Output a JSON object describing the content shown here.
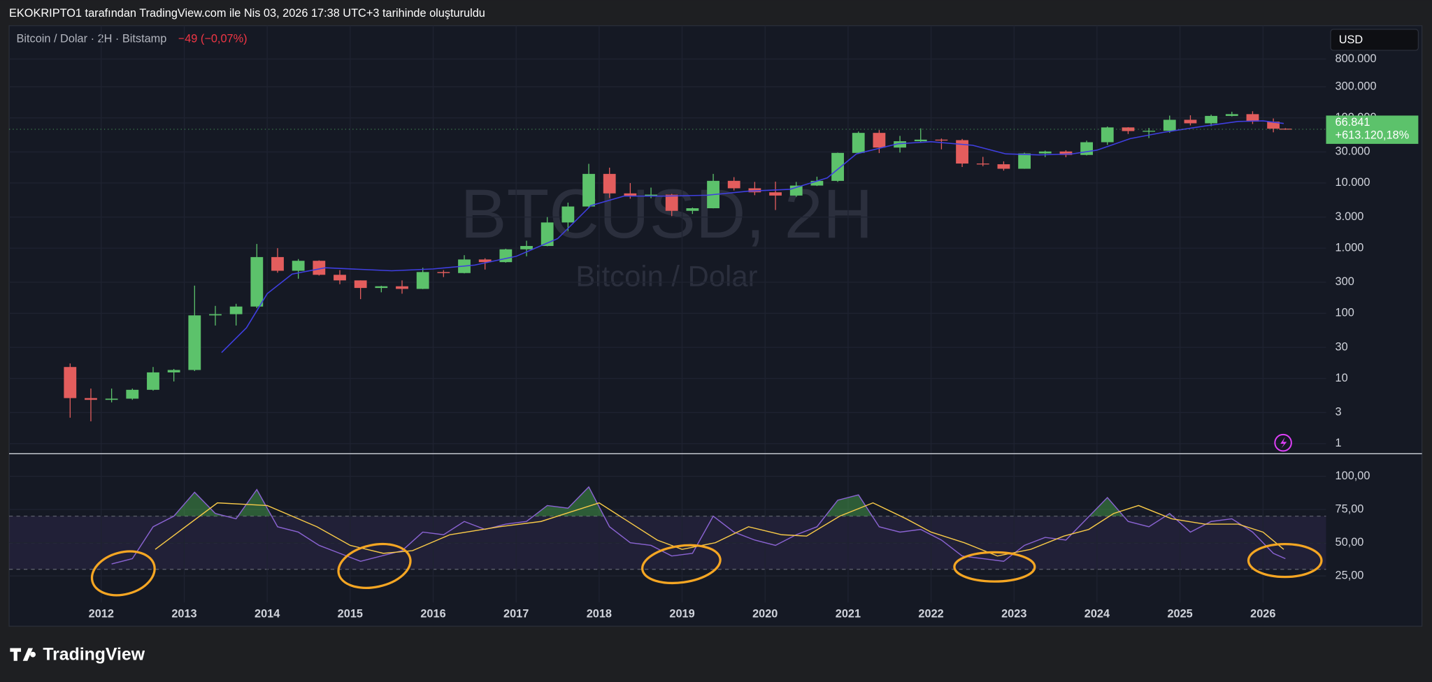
{
  "page": {
    "header": "EKOKRIPTO1 tarafından TradingView.com ile Nis 03, 2026 17:38 UTC+3 tarihinde oluşturuldu",
    "symbol": "Bitcoin / Dolar · 2H · Bitstamp",
    "change": "−49 (−0,07%)",
    "currency": "USD",
    "watermark": "BTCUSD, 2H",
    "watermark_sub": "Bitcoin / Dolar",
    "footer": "TradingView"
  },
  "chart_data": [
    {
      "type": "candlestick",
      "log_scale": true,
      "grid": true,
      "up_color": "#5cc26b",
      "down_color": "#e35d5d",
      "x": [
        2011.625,
        2011.875,
        2012.125,
        2012.375,
        2012.625,
        2012.875,
        2013.125,
        2013.375,
        2013.625,
        2013.875,
        2014.125,
        2014.375,
        2014.625,
        2014.875,
        2015.125,
        2015.375,
        2015.625,
        2015.875,
        2016.125,
        2016.375,
        2016.625,
        2016.875,
        2017.125,
        2017.375,
        2017.625,
        2017.875,
        2018.125,
        2018.375,
        2018.625,
        2018.875,
        2019.125,
        2019.375,
        2019.625,
        2019.875,
        2020.125,
        2020.375,
        2020.625,
        2020.875,
        2021.125,
        2021.375,
        2021.625,
        2021.875,
        2022.125,
        2022.375,
        2022.625,
        2022.875,
        2023.125,
        2023.375,
        2023.625,
        2023.875,
        2024.125,
        2024.375,
        2024.625,
        2024.875,
        2025.125,
        2025.375,
        2025.625,
        2025.875,
        2026.125,
        2026.27
      ],
      "open": [
        15,
        5,
        4.7,
        4.9,
        6.7,
        12.4,
        13.5,
        93,
        97,
        127,
        730,
        450,
        640,
        390,
        320,
        245,
        260,
        237,
        430,
        415,
        670,
        610,
        960,
        1080,
        2480,
        4360,
        13800,
        6930,
        6400,
        6630,
        3740,
        4100,
        10800,
        8300,
        7200,
        6420,
        9140,
        10780,
        28990,
        58800,
        35000,
        43800,
        46300,
        45500,
        19900,
        19400,
        16550,
        28470,
        30470,
        26970,
        42280,
        71300,
        62700,
        63300,
        93400,
        82500,
        107100,
        114000,
        87500,
        68200
      ],
      "high": [
        17,
        7,
        7,
        7,
        15,
        14,
        266,
        130,
        140,
        1160,
        1000,
        680,
        650,
        460,
        320,
        265,
        320,
        500,
        460,
        780,
        700,
        980,
        1300,
        3000,
        5000,
        19700,
        17200,
        9990,
        8500,
        6800,
        4200,
        13800,
        12300,
        10400,
        10500,
        10400,
        12500,
        29300,
        61800,
        64900,
        52900,
        69000,
        48200,
        47500,
        25200,
        21500,
        29200,
        31400,
        31800,
        44700,
        73800,
        72000,
        70000,
        108300,
        109500,
        112000,
        124100,
        126200,
        97900,
        69500
      ],
      "low": [
        2.5,
        2.2,
        4.3,
        4.7,
        6.5,
        9,
        13,
        65,
        65,
        120,
        420,
        340,
        380,
        280,
        165,
        210,
        200,
        235,
        360,
        410,
        470,
        600,
        750,
        1070,
        1830,
        4100,
        5900,
        5750,
        5850,
        3100,
        3350,
        4080,
        7700,
        6500,
        3850,
        6150,
        9000,
        10400,
        28100,
        28800,
        29300,
        42000,
        32900,
        17600,
        18100,
        15500,
        16500,
        25000,
        24900,
        26500,
        38500,
        56500,
        49000,
        58900,
        76600,
        74400,
        105100,
        80600,
        60000,
        65500
      ],
      "close": [
        5,
        4.7,
        4.9,
        6.7,
        12.4,
        13.5,
        93,
        97,
        127,
        730,
        450,
        640,
        390,
        320,
        245,
        260,
        237,
        430,
        415,
        670,
        610,
        960,
        1080,
        2480,
        4360,
        13800,
        6930,
        6400,
        6630,
        3740,
        4100,
        10800,
        8300,
        7200,
        6420,
        9140,
        10780,
        28990,
        58800,
        35000,
        43800,
        46300,
        45500,
        19900,
        19400,
        16550,
        28470,
        30470,
        26970,
        42280,
        71300,
        62700,
        63300,
        93400,
        82500,
        107100,
        114000,
        87500,
        68200,
        66841
      ],
      "ma": {
        "color": "#3f3fe0",
        "x": [
          2013.45,
          2013.75,
          2014.0,
          2014.3,
          2014.7,
          2015.5,
          2016.0,
          2016.5,
          2017.0,
          2017.5,
          2017.9,
          2018.3,
          2018.8,
          2019.3,
          2019.8,
          2020.3,
          2020.75,
          2021.1,
          2021.6,
          2022.0,
          2022.5,
          2022.9,
          2023.3,
          2023.7,
          2024.0,
          2024.4,
          2024.8,
          2025.3,
          2025.7,
          2026.0,
          2026.25
        ],
        "values": [
          25,
          60,
          200,
          400,
          500,
          450,
          480,
          550,
          750,
          1400,
          4500,
          6300,
          6300,
          6500,
          7500,
          8000,
          12000,
          28000,
          40000,
          43000,
          38000,
          28000,
          27000,
          28000,
          32000,
          48000,
          60000,
          75000,
          88000,
          90000,
          82000
        ]
      },
      "last_price": {
        "value": 66841,
        "label": "66.841"
      },
      "last_change": "+613.120,18%",
      "last_color": "#5cc26b",
      "xlim": [
        2010.89,
        2026.76
      ],
      "ylim": [
        0.7,
        2600000
      ],
      "yticks": [
        1,
        3,
        10,
        30,
        100,
        300,
        {
          "value": 1000,
          "label": "1.000"
        },
        {
          "value": 3000,
          "label": "3.000"
        },
        {
          "value": 10000,
          "label": "10.000"
        },
        {
          "value": 30000,
          "label": "30.000"
        },
        {
          "value": 100000,
          "label": "100.000"
        },
        {
          "value": 300000,
          "label": "300.000"
        },
        {
          "value": 800000,
          "label": "800.000"
        }
      ]
    },
    {
      "type": "line",
      "grid": true,
      "band": [
        30,
        70
      ],
      "midline": 50,
      "band_color": "#7e57c2",
      "overbought_color": "#4caf50",
      "series": [
        {
          "color": "#8a63d2",
          "x": [
            2011.625,
            2011.875,
            2012.125,
            2012.375,
            2012.625,
            2012.875,
            2013.125,
            2013.375,
            2013.625,
            2013.875,
            2014.125,
            2014.375,
            2014.625,
            2014.875,
            2015.125,
            2015.375,
            2015.625,
            2015.875,
            2016.125,
            2016.375,
            2016.625,
            2016.875,
            2017.125,
            2017.375,
            2017.625,
            2017.875,
            2018.125,
            2018.375,
            2018.625,
            2018.875,
            2019.125,
            2019.375,
            2019.625,
            2019.875,
            2020.125,
            2020.375,
            2020.625,
            2020.875,
            2021.125,
            2021.375,
            2021.625,
            2021.875,
            2022.125,
            2022.375,
            2022.625,
            2022.875,
            2023.125,
            2023.375,
            2023.625,
            2023.875,
            2024.125,
            2024.375,
            2024.625,
            2024.875,
            2025.125,
            2025.375,
            2025.625,
            2025.875,
            2026.125,
            2026.27
          ],
          "values": [
            null,
            null,
            34,
            38,
            62,
            70,
            88,
            72,
            68,
            90,
            62,
            58,
            48,
            42,
            36,
            40,
            44,
            58,
            56,
            66,
            60,
            64,
            66,
            78,
            76,
            92,
            62,
            50,
            48,
            40,
            42,
            70,
            58,
            52,
            48,
            56,
            62,
            82,
            86,
            62,
            58,
            60,
            52,
            40,
            38,
            36,
            48,
            54,
            52,
            68,
            84,
            66,
            62,
            72,
            58,
            66,
            68,
            58,
            42,
            38
          ]
        },
        {
          "color": "#f7c948",
          "x": [
            2012.65,
            2013.4,
            2014.0,
            2014.6,
            2015.0,
            2015.4,
            2015.75,
            2016.2,
            2016.8,
            2017.3,
            2017.6,
            2018.0,
            2018.3,
            2018.7,
            2019.0,
            2019.4,
            2019.8,
            2020.2,
            2020.5,
            2020.9,
            2021.3,
            2021.7,
            2022.0,
            2022.4,
            2022.8,
            2023.2,
            2023.6,
            2023.9,
            2024.2,
            2024.5,
            2024.9,
            2025.3,
            2025.7,
            2026.0,
            2026.25
          ],
          "values": [
            45,
            80,
            78,
            62,
            48,
            42,
            44,
            56,
            62,
            66,
            72,
            80,
            68,
            52,
            45,
            50,
            62,
            56,
            55,
            70,
            80,
            68,
            58,
            50,
            40,
            45,
            55,
            60,
            72,
            78,
            68,
            64,
            64,
            58,
            45
          ]
        }
      ],
      "xlim": [
        2010.89,
        2026.76
      ],
      "ylim": [
        5,
        117
      ],
      "xticks": [
        2012,
        2013,
        2014,
        2015,
        2016,
        2017,
        2018,
        2019,
        2020,
        2021,
        2022,
        2023,
        2024,
        2025,
        2026
      ],
      "yticks": [
        {
          "value": 25,
          "label": "25,00"
        },
        {
          "value": 50,
          "label": "50,00"
        },
        {
          "value": 75,
          "label": "75,00"
        },
        {
          "value": 100,
          "label": "100,00"
        }
      ]
    }
  ]
}
